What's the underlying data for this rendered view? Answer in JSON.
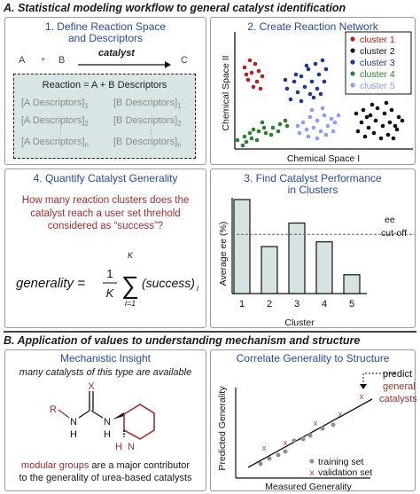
{
  "sectionA": {
    "title": "A. Statistical modeling workflow to general catalyst identification"
  },
  "panel1": {
    "title_line1": "1. Define Reaction Space",
    "title_line2": "and Descriptors",
    "reactant_a": "A",
    "plus": "+",
    "reactant_b": "B",
    "arrow_label": "catalyst",
    "product": "C",
    "reaction_line": "Reaction = A + B Descriptors",
    "a_desc": [
      "[A Descriptors]",
      "[A Descriptors]",
      "[A Descriptors]"
    ],
    "a_subs": [
      "1",
      "2",
      "n"
    ],
    "b_desc": [
      "[B Descriptors]",
      "[B Descriptors]",
      "[B Descriptors]"
    ],
    "b_subs": [
      "1",
      "2",
      "n"
    ],
    "vdots": "⋮"
  },
  "panel2": {
    "title": "2. Create Reaction Network",
    "ylabel": "Chemical Space II",
    "xlabel": "Chemical Space I",
    "legend": [
      {
        "label": "cluster 1",
        "color": "#b22222"
      },
      {
        "label": "cluster 2",
        "color": "#111111"
      },
      {
        "label": "cluster 3",
        "color": "#1f3a8a"
      },
      {
        "label": "cluster 4",
        "color": "#2e7d32"
      },
      {
        "label": "cluster 5",
        "color": "#8c9ef0"
      }
    ]
  },
  "panel3": {
    "title_line1": "3. Find Catalyst Performance",
    "title_line2": "in Clusters",
    "chart_data": {
      "type": "bar",
      "categories": [
        "1",
        "2",
        "3",
        "4",
        "5"
      ],
      "values": [
        1.0,
        0.5,
        0.75,
        0.55,
        0.2
      ],
      "threshold": 0.63,
      "threshold_label_line1": "ee",
      "threshold_label_line2": "cut-off",
      "xlabel": "Cluster",
      "ylabel": "Average ee (%)",
      "bar_color": "#d5e3e3"
    }
  },
  "panel4": {
    "title": "4. Quantify Catalyst Generality",
    "question_line1": "How many reaction clusters does the",
    "question_line2": "catalyst reach a user set threhold",
    "question_line3": "considered as “success”?",
    "eq_lhs": "generality =",
    "eq_num": "1",
    "eq_den": "K",
    "eq_sum_top": "K",
    "eq_sum_bottom": "i=1",
    "eq_term": "(success)",
    "eq_sub": "i"
  },
  "sectionB": {
    "title": "B. Application of values to understanding mechanism and structure"
  },
  "panel5": {
    "title": "Mechanistic Insight",
    "intro": "many catalysts of this type are available",
    "atoms": {
      "R": "R",
      "N1": "N",
      "H1": "H",
      "X": "X",
      "N2": "N",
      "H2": "H",
      "H3": "H",
      "N3": "N"
    },
    "footer_red": "modular groups",
    "footer_rest1": " are a major contributor",
    "footer_line2": "to the generality of urea-based catalysts"
  },
  "panel6": {
    "title": "Correlate Generality to Structure",
    "ylabel": "Predicted Generality",
    "xlabel": "Measured Generality",
    "predict_line1": "predict",
    "predict_line2": "general",
    "predict_line3": "catalysts",
    "legend_training": "training set",
    "legend_validation": "validation set",
    "legend_validation_marker": "x"
  }
}
